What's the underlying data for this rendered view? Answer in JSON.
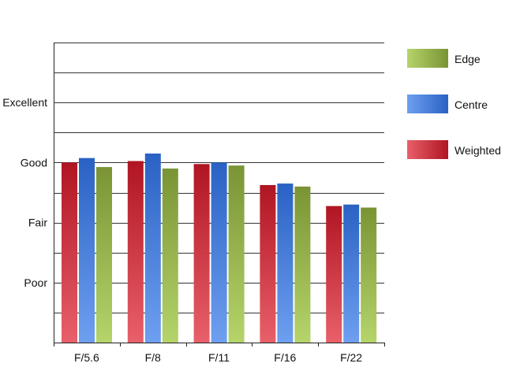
{
  "chart_data": {
    "type": "bar",
    "categories": [
      "F/5.6",
      "F/8",
      "F/11",
      "F/16",
      "F/22"
    ],
    "series": [
      {
        "name": "Weighted",
        "values": [
          6.0,
          6.05,
          5.95,
          5.25,
          4.55
        ],
        "colors": [
          "#e8606a",
          "#b01522"
        ]
      },
      {
        "name": "Centre",
        "values": [
          6.15,
          6.3,
          6.0,
          5.3,
          4.6
        ],
        "colors": [
          "#6e9ff0",
          "#2a62c4"
        ]
      },
      {
        "name": "Edge",
        "values": [
          5.85,
          5.8,
          5.9,
          5.2,
          4.5
        ],
        "colors": [
          "#b5d46a",
          "#7a9435"
        ]
      }
    ],
    "y_ticks": [
      "Poor",
      "Fair",
      "Good",
      "Excellent"
    ],
    "y_tick_values": [
      2,
      4,
      6,
      8
    ],
    "ylim": [
      0,
      10
    ],
    "grid": true,
    "legend_position": "right",
    "legend_order": [
      "Edge",
      "Centre",
      "Weighted"
    ]
  }
}
